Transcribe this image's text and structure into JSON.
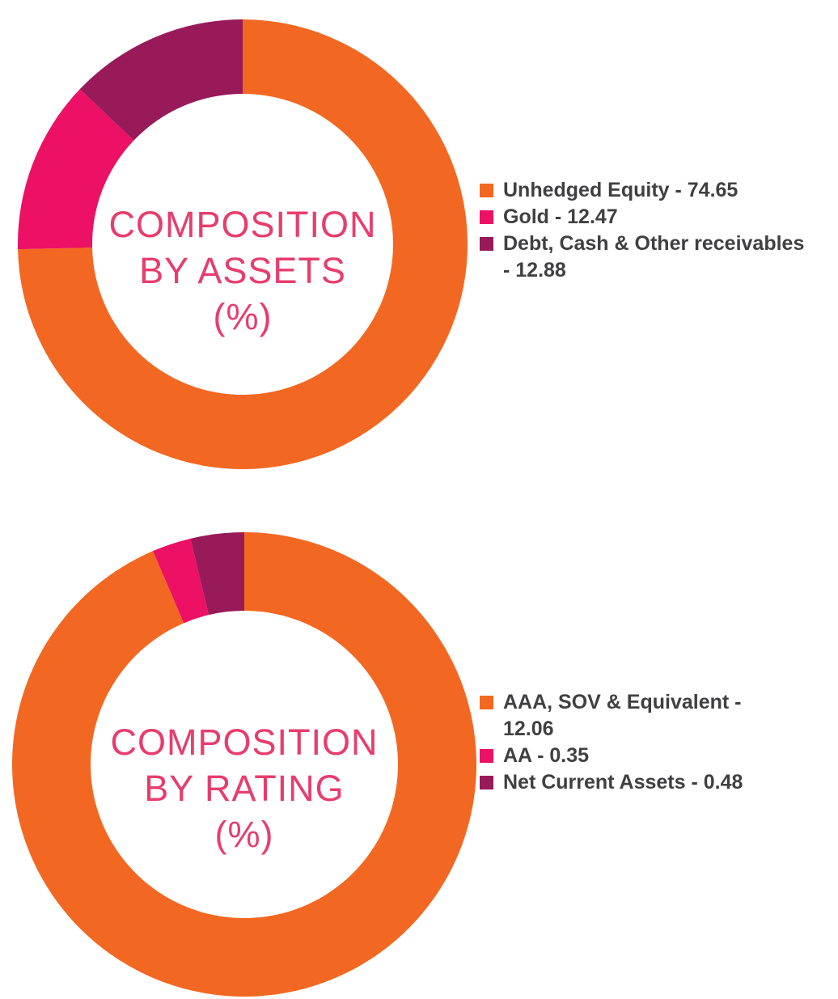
{
  "colors": {
    "orange": "#F26822",
    "pink": "#EC1164",
    "maroon": "#981A59",
    "title_pink": "#E73D6E",
    "legend_text": "#404042",
    "background": "#FFFFFF"
  },
  "charts": [
    {
      "title_lines": [
        "COMPOSITION",
        "BY ASSETS",
        "(%)"
      ],
      "legend": [
        {
          "text": "Unhedged Equity - 74.65",
          "color": "#F26822"
        },
        {
          "text": "Gold - 12.47",
          "color": "#EC1164"
        },
        {
          "text": "Debt, Cash & Other receivables\n- 12.88",
          "color": "#981A59"
        }
      ]
    },
    {
      "title_lines": [
        "COMPOSITION",
        "BY RATING",
        "(%)"
      ],
      "legend": [
        {
          "text": "AAA, SOV & Equivalent -\n12.06",
          "color": "#F26822"
        },
        {
          "text": "AA - 0.35",
          "color": "#EC1164"
        },
        {
          "text": "Net Current Assets - 0.48",
          "color": "#981A59"
        }
      ]
    }
  ],
  "chart_data": [
    {
      "type": "pie",
      "subtype": "donut",
      "title": "COMPOSITION BY ASSETS (%)",
      "labels": [
        "Unhedged Equity",
        "Gold",
        "Debt, Cash & Other receivables"
      ],
      "values": [
        74.65,
        12.47,
        12.88
      ],
      "colors": [
        "#F26822",
        "#EC1164",
        "#981A59"
      ],
      "start_angle": "top",
      "direction": "clockwise",
      "inner_radius_ratio": 0.67,
      "legend_position": "right",
      "center_text": "COMPOSITION BY ASSETS (%)"
    },
    {
      "type": "pie",
      "subtype": "donut",
      "title": "COMPOSITION BY RATING (%)",
      "labels": [
        "AAA, SOV & Equivalent",
        "AA",
        "Net Current Assets"
      ],
      "values": [
        12.06,
        0.35,
        0.48
      ],
      "colors": [
        "#F26822",
        "#EC1164",
        "#981A59"
      ],
      "start_angle": "top",
      "direction": "clockwise",
      "inner_radius_ratio": 0.66,
      "legend_position": "right",
      "center_text": "COMPOSITION BY RATING (%)"
    }
  ]
}
